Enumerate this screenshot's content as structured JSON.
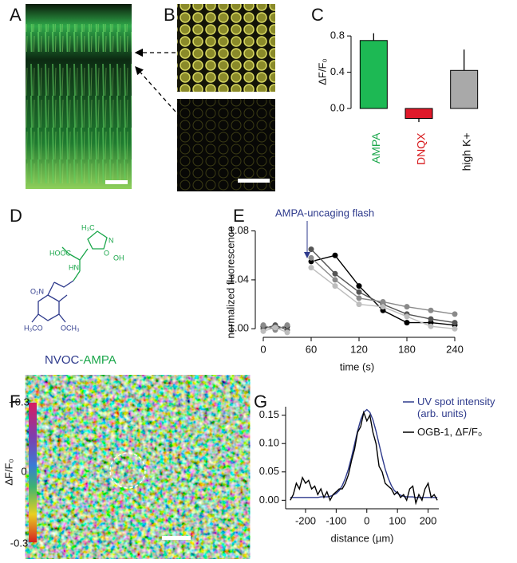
{
  "panel_labels": [
    "A",
    "B",
    "C",
    "D",
    "E",
    "F",
    "G"
  ],
  "structure": {
    "atoms": [
      "H₃C",
      "HOOC",
      "HN",
      "N",
      "O",
      "OH",
      "O₂N",
      "H₃CO",
      "OCH₃"
    ],
    "name_parts": [
      "NVOC",
      "-AMPA"
    ]
  },
  "colorbar": {
    "labels": [
      "+0.3",
      "0",
      "-0.3"
    ],
    "title": "ΔF/F₀"
  },
  "chart_data": [
    {
      "type": "bar",
      "y_label": "ΔF/F₀",
      "categories": [
        "AMPA",
        "DNQX",
        "high K+"
      ],
      "category_colors": [
        "#1aa64a",
        "#d7191c",
        "#111111"
      ],
      "values": [
        0.75,
        -0.11,
        0.42
      ],
      "errors": [
        0.08,
        0.04,
        0.23
      ],
      "colors": [
        "#1db954",
        "#e0192a",
        "#a9a9a9"
      ],
      "ylim": [
        -0.18,
        0.88
      ],
      "yticks": [
        {
          "value": 0,
          "label": "0.0"
        },
        {
          "value": 0.4,
          "label": "0.4"
        },
        {
          "value": 0.8,
          "label": "0.8"
        }
      ]
    },
    {
      "type": "line",
      "x_label": "time (s)",
      "y_label": "normalized fluorescence",
      "annotation": "AMPA-uncaging flash",
      "markers": true,
      "x": [
        0,
        15,
        30,
        45,
        60,
        90,
        120,
        150,
        180,
        210,
        240
      ],
      "series": [
        {
          "name": null,
          "color": "#000000",
          "values": [
            1.002,
            1.0,
            1.002,
            null,
            1.055,
            1.06,
            1.035,
            1.015,
            1.005,
            1.005,
            1.003
          ]
        },
        {
          "name": null,
          "color": "#555555",
          "values": [
            1.0,
            1.003,
            0.999,
            null,
            1.065,
            1.045,
            1.03,
            1.02,
            1.012,
            1.008,
            1.005
          ]
        },
        {
          "name": null,
          "color": "#8a8a8a",
          "values": [
            1.003,
            0.999,
            1.003,
            null,
            1.058,
            1.04,
            1.025,
            1.022,
            1.018,
            1.015,
            1.012
          ]
        },
        {
          "name": null,
          "color": "#bdbdbd",
          "values": [
            0.998,
            1.001,
            0.997,
            null,
            1.05,
            1.035,
            1.02,
            1.018,
            1.01,
            1.002,
            1.0
          ]
        }
      ],
      "xlim": [
        -10,
        245
      ],
      "xticks": [
        0,
        60,
        120,
        180,
        240
      ],
      "ylim": [
        0.993,
        1.083
      ],
      "yticks": [
        {
          "value": 1,
          "label": "1.00"
        },
        {
          "value": 1.04,
          "label": "1.04"
        },
        {
          "value": 1.08,
          "label": "1.08"
        }
      ]
    },
    {
      "type": "line",
      "x_label": "distance (µm)",
      "markers": false,
      "legend": "upper right",
      "x": [
        -250,
        -240,
        -230,
        -220,
        -210,
        -200,
        -190,
        -180,
        -170,
        -160,
        -150,
        -140,
        -130,
        -120,
        -110,
        -100,
        -90,
        -80,
        -70,
        -60,
        -50,
        -40,
        -30,
        -20,
        -10,
        0,
        10,
        20,
        30,
        40,
        50,
        60,
        70,
        80,
        90,
        100,
        110,
        120,
        130,
        140,
        150,
        160,
        170,
        180,
        190,
        200,
        210,
        220,
        230
      ],
      "series": [
        {
          "name": "UV spot intensity (arb. units)",
          "color": "#2e3a8c",
          "values": [
            0.005,
            0.005,
            0.005,
            0.005,
            0.005,
            0.005,
            0.005,
            0.005,
            0.005,
            0.005,
            0.006,
            0.006,
            0.006,
            0.007,
            0.009,
            0.012,
            0.017,
            0.026,
            0.039,
            0.055,
            0.076,
            0.099,
            0.122,
            0.142,
            0.155,
            0.16,
            0.155,
            0.142,
            0.122,
            0.099,
            0.076,
            0.055,
            0.039,
            0.026,
            0.017,
            0.012,
            0.009,
            0.007,
            0.006,
            0.006,
            0.006,
            0.005,
            0.005,
            0.005,
            0.005,
            0.005,
            0.005,
            0.005,
            0.005
          ]
        },
        {
          "name": "OGB-1, ΔF/F₀",
          "color": "#000000",
          "values": [
            0.0,
            0.01,
            0.03,
            0.02,
            0.04,
            0.03,
            0.035,
            0.02,
            0.025,
            0.01,
            0.02,
            0.005,
            0.015,
            0.0,
            0.01,
            0.015,
            0.02,
            0.02,
            0.03,
            0.045,
            0.07,
            0.09,
            0.12,
            0.13,
            0.155,
            0.14,
            0.15,
            0.12,
            0.1,
            0.06,
            0.05,
            0.03,
            0.025,
            0.02,
            0.01,
            0.015,
            0.005,
            0.01,
            0.0,
            0.02,
            0.025,
            -0.005,
            0.01,
            0.0,
            0.02,
            0.03,
            0.005,
            0.01,
            0.0
          ]
        }
      ],
      "xlim": [
        -265,
        235
      ],
      "xticks": [
        -200,
        -100,
        0,
        100,
        200
      ],
      "ylim": [
        -0.015,
        0.165
      ],
      "yticks": [
        {
          "value": 0,
          "label": "0.00"
        },
        {
          "value": 0.05,
          "label": "0.05"
        },
        {
          "value": 0.1,
          "label": "0.10"
        },
        {
          "value": 0.15,
          "label": "0.15"
        }
      ]
    }
  ]
}
